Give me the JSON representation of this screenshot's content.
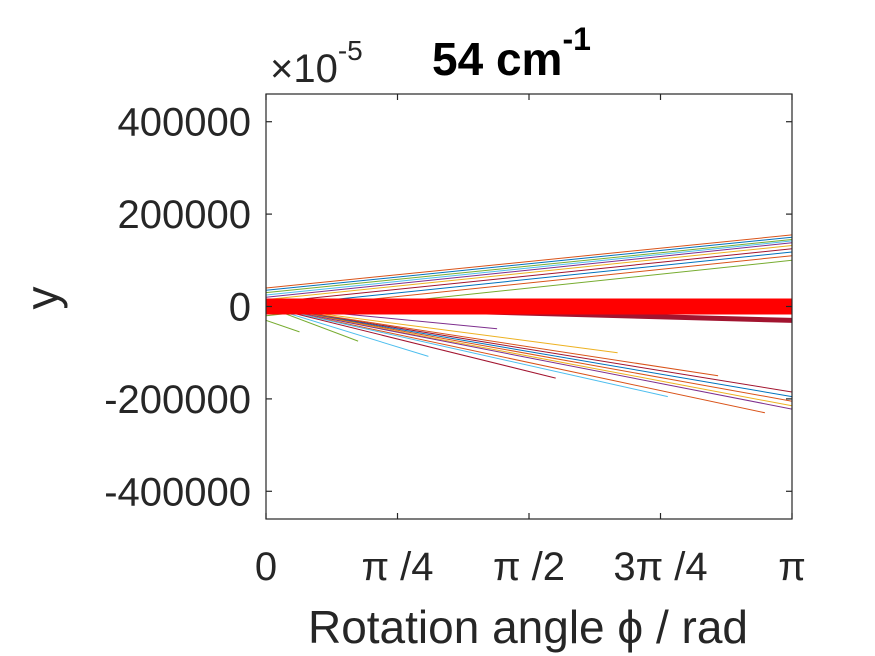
{
  "chart_data": {
    "type": "line",
    "title_value": "54 cm",
    "title_superscript": "-1",
    "xlabel": "Rotation angle ϕ / rad",
    "ylabel": "y",
    "exponent_base": "×10",
    "exponent_power": "-5",
    "xlim": [
      0,
      3.14159
    ],
    "ylim": [
      -460000,
      460000
    ],
    "xticks": [
      0,
      0.7854,
      1.5708,
      2.3562,
      3.14159
    ],
    "xtick_labels": [
      "0",
      "π /4",
      "π /2",
      "3π /4",
      "π"
    ],
    "yticks": [
      400000,
      200000,
      0,
      -200000,
      -400000
    ],
    "ytick_labels": [
      "400000",
      "200000",
      "0",
      "-200000",
      "-400000"
    ],
    "grid": false,
    "series": [
      {
        "color": "#d95319",
        "width": 1,
        "x": [
          0,
          3.1416
        ],
        "y": [
          40000,
          155000
        ]
      },
      {
        "color": "#0072bd",
        "width": 1,
        "x": [
          0,
          3.1416
        ],
        "y": [
          35000,
          150000
        ]
      },
      {
        "color": "#77ac30",
        "width": 1,
        "x": [
          0,
          3.1416
        ],
        "y": [
          30000,
          145000
        ]
      },
      {
        "color": "#4dbeee",
        "width": 1,
        "x": [
          0,
          3.1416
        ],
        "y": [
          25000,
          142000
        ]
      },
      {
        "color": "#7e2f8e",
        "width": 1,
        "x": [
          0,
          3.1416
        ],
        "y": [
          20000,
          138000
        ]
      },
      {
        "color": "#edb120",
        "width": 1,
        "x": [
          0,
          3.1416
        ],
        "y": [
          15000,
          132000
        ]
      },
      {
        "color": "#a2142f",
        "width": 1,
        "x": [
          0,
          3.1416
        ],
        "y": [
          8000,
          125000
        ]
      },
      {
        "color": "#0072bd",
        "width": 1,
        "x": [
          0,
          3.1416
        ],
        "y": [
          0,
          118000
        ]
      },
      {
        "color": "#d95319",
        "width": 1,
        "x": [
          0,
          3.1416
        ],
        "y": [
          -8000,
          110000
        ]
      },
      {
        "color": "#77ac30",
        "width": 1,
        "x": [
          0,
          3.1416
        ],
        "y": [
          -20000,
          100000
        ]
      },
      {
        "color": "#77ac30",
        "width": 1,
        "x": [
          0,
          0.2
        ],
        "y": [
          -30000,
          -55000
        ]
      },
      {
        "color": "#a2142f",
        "width": 1,
        "x": [
          0,
          3.1416
        ],
        "y": [
          0,
          -185000
        ]
      },
      {
        "color": "#0072bd",
        "width": 1,
        "x": [
          0,
          3.1416
        ],
        "y": [
          0,
          -195000
        ]
      },
      {
        "color": "#d95319",
        "width": 1,
        "x": [
          0,
          3.1416
        ],
        "y": [
          0,
          -205000
        ]
      },
      {
        "color": "#edb120",
        "width": 1,
        "x": [
          0,
          3.1416
        ],
        "y": [
          0,
          -215000
        ]
      },
      {
        "color": "#7e2f8e",
        "width": 1,
        "x": [
          0,
          3.1416
        ],
        "y": [
          0,
          -222000
        ]
      },
      {
        "color": "#d95319",
        "width": 1,
        "x": [
          0,
          2.98
        ],
        "y": [
          0,
          -230000
        ]
      },
      {
        "color": "#4dbeee",
        "width": 1,
        "x": [
          0,
          2.4
        ],
        "y": [
          0,
          -195000
        ]
      },
      {
        "color": "#d95319",
        "width": 1,
        "x": [
          0,
          2.7
        ],
        "y": [
          0,
          -150000
        ]
      },
      {
        "color": "#edb120",
        "width": 1,
        "x": [
          0,
          2.1
        ],
        "y": [
          0,
          -100000
        ]
      },
      {
        "color": "#a2142f",
        "width": 1,
        "x": [
          0,
          1.73
        ],
        "y": [
          0,
          -155000
        ]
      },
      {
        "color": "#7e2f8e",
        "width": 1,
        "x": [
          0,
          1.38
        ],
        "y": [
          0,
          -48000
        ]
      },
      {
        "color": "#4dbeee",
        "width": 1,
        "x": [
          0,
          0.97
        ],
        "y": [
          0,
          -108000
        ]
      },
      {
        "color": "#77ac30",
        "width": 1,
        "x": [
          0,
          0.55
        ],
        "y": [
          0,
          -75000
        ]
      },
      {
        "color": "#a2142f",
        "width": 5,
        "x": [
          0.3,
          3.1416
        ],
        "y": [
          -2000,
          -30000
        ]
      },
      {
        "color": "#ff0000",
        "width": 16,
        "x": [
          0,
          3.1416
        ],
        "y": [
          0,
          0
        ]
      }
    ]
  }
}
